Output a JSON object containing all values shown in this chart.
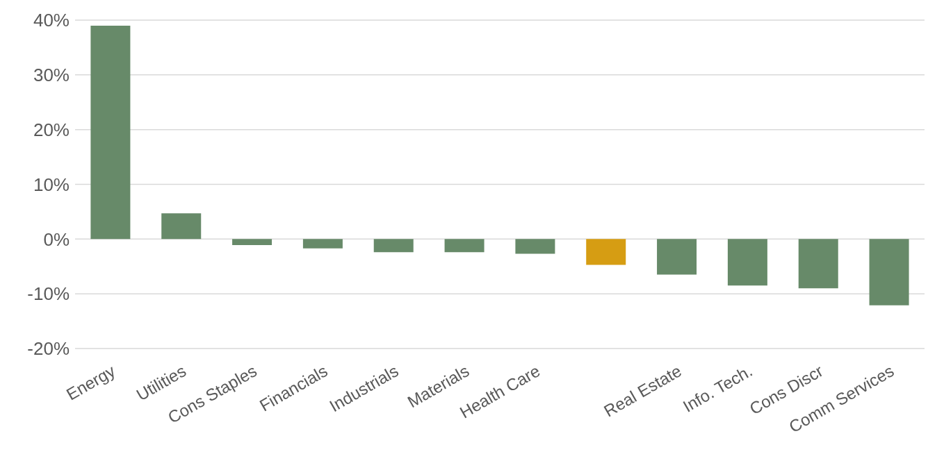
{
  "chart_data": {
    "type": "bar",
    "categories": [
      "Energy",
      "Utilities",
      "Cons Staples",
      "Financials",
      "Industrials",
      "Materials",
      "Health Care",
      null,
      "Real Estate",
      "Info. Tech.",
      "Cons Discr",
      "Comm Services"
    ],
    "values": [
      39.0,
      4.7,
      -1.1,
      -1.7,
      -2.4,
      -2.4,
      -2.7,
      -4.7,
      -6.5,
      -8.5,
      -9.0,
      -12.1
    ],
    "colors": [
      "#678a69",
      "#678a69",
      "#678a69",
      "#678a69",
      "#678a69",
      "#678a69",
      "#678a69",
      "#d69d13",
      "#678a69",
      "#678a69",
      "#678a69",
      "#678a69"
    ],
    "ylim": [
      -20,
      40
    ],
    "yticks": [
      {
        "value": -20,
        "label": "-20%"
      },
      {
        "value": -10,
        "label": "-10%"
      },
      {
        "value": 0,
        "label": "0%"
      },
      {
        "value": 10,
        "label": "10%"
      },
      {
        "value": 20,
        "label": "20%"
      },
      {
        "value": 30,
        "label": "30%"
      },
      {
        "value": 40,
        "label": "40%"
      }
    ],
    "grid": "y"
  }
}
